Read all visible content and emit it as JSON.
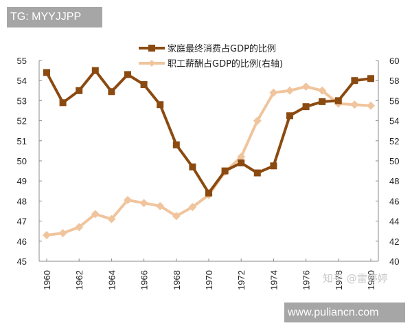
{
  "watermarks": {
    "top_tag": "TG: MYYJJPP",
    "bottom_tag": "www.puliancn.com",
    "overlay_text": "知乎 @雷婷婷"
  },
  "chart_data": {
    "type": "line",
    "title": "",
    "xlabel": "",
    "ylabel_left": "",
    "ylabel_right": "",
    "x": [
      1960,
      1961,
      1962,
      1963,
      1964,
      1965,
      1966,
      1967,
      1968,
      1969,
      1970,
      1971,
      1972,
      1973,
      1974,
      1975,
      1976,
      1977,
      1978,
      1979,
      1980
    ],
    "x_tick_labels": [
      "1960",
      "1962",
      "1964",
      "1966",
      "1968",
      "1970",
      "1972",
      "1974",
      "1976",
      "1978",
      "1980"
    ],
    "ylim_left": [
      45,
      55
    ],
    "y_left_ticks": [
      "45",
      "46",
      "47",
      "48",
      "49",
      "50",
      "51",
      "52",
      "53",
      "54",
      "55"
    ],
    "ylim_right": [
      40,
      60
    ],
    "y_right_ticks": [
      "40",
      "42",
      "44",
      "46",
      "48",
      "50",
      "52",
      "54",
      "56",
      "58",
      "60"
    ],
    "grid": false,
    "legend_position": "top-center",
    "series": [
      {
        "name": "家庭最终消费占GDP的比例",
        "axis": "left",
        "color": "#8b4a10",
        "marker": "square",
        "values": [
          54.4,
          52.9,
          53.5,
          54.5,
          53.45,
          54.3,
          53.8,
          52.8,
          50.8,
          49.7,
          48.4,
          49.5,
          49.9,
          49.4,
          49.75,
          52.25,
          52.7,
          52.95,
          53.0,
          54.0,
          54.1
        ]
      },
      {
        "name": "职工薪酬占GDP的比例(右轴)",
        "axis": "right",
        "color": "#f0c49c",
        "marker": "diamond",
        "values": [
          42.6,
          42.8,
          43.4,
          44.7,
          44.2,
          46.1,
          45.8,
          45.5,
          44.5,
          45.4,
          46.6,
          48.9,
          50.4,
          54.0,
          56.8,
          57.0,
          57.4,
          57.0,
          55.7,
          55.6,
          55.5
        ]
      }
    ]
  }
}
